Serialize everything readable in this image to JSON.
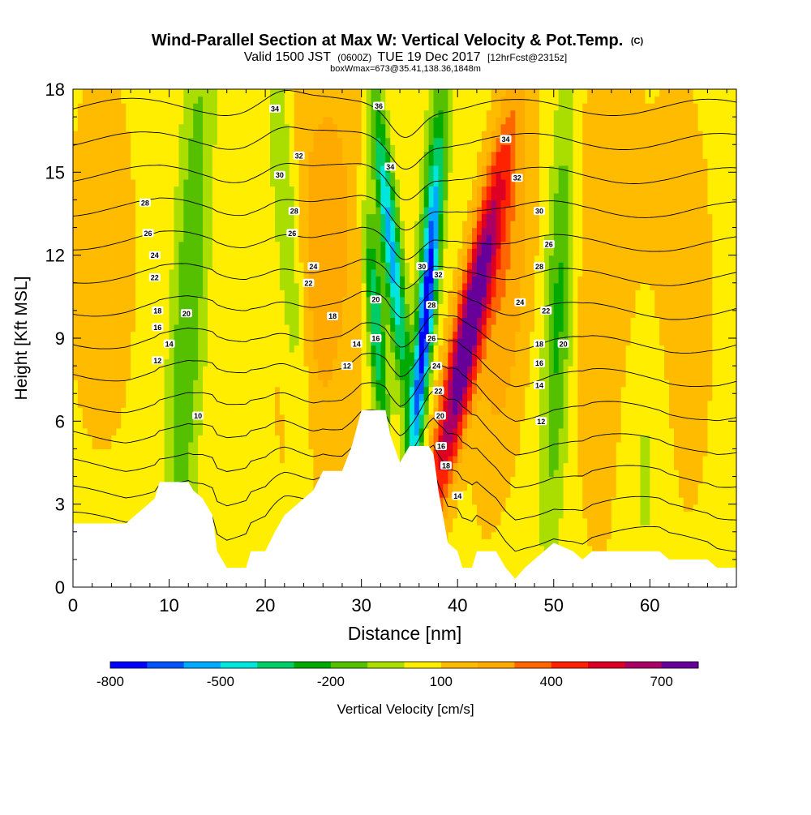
{
  "title": "Wind-Parallel Section at Max W: Vertical Velocity & Pot.Temp.",
  "title_mark": "(C)",
  "subtitle_parts": [
    "Valid 1500 JST",
    "(0600Z)",
    "TUE 19 Dec 2017",
    "[12hrFcst@2315z]"
  ],
  "subtitle2": "boxWmax=673@35.41,138.36,1848m",
  "colorbar": {
    "label": "Vertical Velocity [cm/s]",
    "tick_labels": [
      "-800",
      "-500",
      "-200",
      "100",
      "400",
      "700"
    ],
    "tick_values": [
      -800,
      -500,
      -200,
      100,
      400,
      700
    ],
    "levels": [
      -800,
      -700,
      -600,
      -500,
      -400,
      -300,
      -200,
      -100,
      0,
      100,
      200,
      300,
      400,
      500,
      600,
      700,
      800
    ],
    "colors": [
      "#0000ff",
      "#0055ff",
      "#00aaff",
      "#00e5dd",
      "#00cc66",
      "#00aa00",
      "#55c000",
      "#aadd00",
      "#ffee00",
      "#ffbb00",
      "#ffaa00",
      "#ff6600",
      "#ff2200",
      "#dd0022",
      "#aa0066",
      "#660099"
    ]
  },
  "chart_data": {
    "type": "heatmap",
    "xlabel": "Distance [nm]",
    "ylabel": "Height [Kft MSL]",
    "xlim": [
      0,
      69
    ],
    "ylim": [
      0,
      18
    ],
    "x_ticks": [
      0,
      10,
      20,
      30,
      40,
      50,
      60
    ],
    "y_ticks": [
      0,
      3,
      6,
      9,
      12,
      15,
      18
    ],
    "terrain": [
      {
        "x": 0,
        "h": 2.3
      },
      {
        "x": 5.5,
        "h": 2.3
      },
      {
        "x": 6.5,
        "h": 2.6
      },
      {
        "x": 7.5,
        "h": 2.9
      },
      {
        "x": 8.5,
        "h": 3.2
      },
      {
        "x": 9,
        "h": 3.8
      },
      {
        "x": 12,
        "h": 3.8
      },
      {
        "x": 12.5,
        "h": 3.5
      },
      {
        "x": 13.5,
        "h": 3.2
      },
      {
        "x": 14.5,
        "h": 2.6
      },
      {
        "x": 15,
        "h": 1.3
      },
      {
        "x": 16,
        "h": 0.7
      },
      {
        "x": 18,
        "h": 0.7
      },
      {
        "x": 18.5,
        "h": 1.3
      },
      {
        "x": 20,
        "h": 1.3
      },
      {
        "x": 21,
        "h": 2.0
      },
      {
        "x": 22,
        "h": 2.6
      },
      {
        "x": 23,
        "h": 2.9
      },
      {
        "x": 24,
        "h": 3.2
      },
      {
        "x": 25,
        "h": 3.5
      },
      {
        "x": 26,
        "h": 4.2
      },
      {
        "x": 28,
        "h": 4.2
      },
      {
        "x": 29,
        "h": 5.1
      },
      {
        "x": 30,
        "h": 6.4
      },
      {
        "x": 32.5,
        "h": 6.4
      },
      {
        "x": 33,
        "h": 5.5
      },
      {
        "x": 34,
        "h": 4.5
      },
      {
        "x": 35,
        "h": 5.1
      },
      {
        "x": 37,
        "h": 5.1
      },
      {
        "x": 37.5,
        "h": 4.8
      },
      {
        "x": 38,
        "h": 3.5
      },
      {
        "x": 39,
        "h": 1.6
      },
      {
        "x": 40,
        "h": 1.3
      },
      {
        "x": 40.5,
        "h": 0.7
      },
      {
        "x": 41.5,
        "h": 0.7
      },
      {
        "x": 42,
        "h": 1.3
      },
      {
        "x": 44,
        "h": 1.3
      },
      {
        "x": 45,
        "h": 0.7
      },
      {
        "x": 46,
        "h": 0.3
      },
      {
        "x": 47,
        "h": 0.7
      },
      {
        "x": 48,
        "h": 1.0
      },
      {
        "x": 49,
        "h": 1.3
      },
      {
        "x": 50,
        "h": 1.6
      },
      {
        "x": 52,
        "h": 1.3
      },
      {
        "x": 53,
        "h": 1.0
      },
      {
        "x": 54,
        "h": 1.3
      },
      {
        "x": 61,
        "h": 1.3
      },
      {
        "x": 62,
        "h": 1.0
      },
      {
        "x": 66,
        "h": 1.0
      },
      {
        "x": 67,
        "h": 0.7
      },
      {
        "x": 69,
        "h": 0.7
      }
    ],
    "w_features": [
      {
        "x": 41,
        "y": 9.0,
        "amp": 780,
        "sx": 1.1,
        "sy": 4.5,
        "tilt": 0.55
      },
      {
        "x": 36.5,
        "y": 9.0,
        "amp": -780,
        "sx": 0.6,
        "sy": 3.5,
        "tilt": 0.25
      },
      {
        "x": 33.0,
        "y": 12.5,
        "amp": -620,
        "sx": 0.7,
        "sy": 4.0,
        "tilt": -0.3
      },
      {
        "x": 31.5,
        "y": 9.5,
        "amp": -500,
        "sx": 0.6,
        "sy": 3.0,
        "tilt": -0.2
      },
      {
        "x": 37.5,
        "y": 14.5,
        "amp": -350,
        "sx": 0.8,
        "sy": 3.0,
        "tilt": 0.2
      },
      {
        "x": 45.0,
        "y": 11.0,
        "amp": 220,
        "sx": 1.8,
        "sy": 5.0,
        "tilt": 0.2
      },
      {
        "x": 26.0,
        "y": 12.0,
        "amp": 200,
        "sx": 3.0,
        "sy": 6.0,
        "tilt": 0.1
      },
      {
        "x": 12.0,
        "y": 10.0,
        "amp": -260,
        "sx": 1.2,
        "sy": 8.0,
        "tilt": 0.15
      },
      {
        "x": 22.5,
        "y": 12.0,
        "amp": -230,
        "sx": 1.0,
        "sy": 5.0,
        "tilt": -0.2
      },
      {
        "x": 50.5,
        "y": 10.0,
        "amp": -300,
        "sx": 1.0,
        "sy": 5.5,
        "tilt": 0.1
      },
      {
        "x": 55.5,
        "y": 11.0,
        "amp": 130,
        "sx": 2.5,
        "sy": 7.0,
        "tilt": 0.0
      },
      {
        "x": 63.0,
        "y": 10.0,
        "amp": 110,
        "sx": 2.5,
        "sy": 6.0,
        "tilt": 0.0
      },
      {
        "x": 3.0,
        "y": 12.0,
        "amp": 80,
        "sx": 3.0,
        "sy": 6.0,
        "tilt": 0.0
      },
      {
        "x": 59.5,
        "y": 5.0,
        "amp": -120,
        "sx": 2.0,
        "sy": 4.0,
        "tilt": 0.0
      }
    ],
    "theta_contour_levels": [
      10,
      12,
      14,
      16,
      18,
      20,
      22,
      24,
      26,
      28,
      30,
      32,
      34,
      36
    ],
    "theta_labels": [
      {
        "text": "34",
        "x": 21.0,
        "y": 17.3
      },
      {
        "text": "32",
        "x": 23.5,
        "y": 15.6
      },
      {
        "text": "30",
        "x": 21.5,
        "y": 14.9
      },
      {
        "text": "28",
        "x": 7.5,
        "y": 13.9
      },
      {
        "text": "28",
        "x": 23.0,
        "y": 13.6
      },
      {
        "text": "26",
        "x": 7.8,
        "y": 12.8
      },
      {
        "text": "26",
        "x": 22.8,
        "y": 12.8
      },
      {
        "text": "24",
        "x": 8.5,
        "y": 12.0
      },
      {
        "text": "24",
        "x": 25.0,
        "y": 11.6
      },
      {
        "text": "22",
        "x": 8.5,
        "y": 11.2
      },
      {
        "text": "22",
        "x": 24.5,
        "y": 11.0
      },
      {
        "text": "18",
        "x": 8.8,
        "y": 10.0
      },
      {
        "text": "20",
        "x": 11.8,
        "y": 9.9
      },
      {
        "text": "18",
        "x": 27.0,
        "y": 9.8
      },
      {
        "text": "16",
        "x": 8.8,
        "y": 9.4
      },
      {
        "text": "14",
        "x": 10.0,
        "y": 8.8
      },
      {
        "text": "14",
        "x": 29.5,
        "y": 8.8
      },
      {
        "text": "12",
        "x": 8.8,
        "y": 8.2
      },
      {
        "text": "12",
        "x": 28.5,
        "y": 8.0
      },
      {
        "text": "10",
        "x": 13.0,
        "y": 6.2
      },
      {
        "text": "36",
        "x": 31.8,
        "y": 17.4
      },
      {
        "text": "34",
        "x": 33.0,
        "y": 15.2
      },
      {
        "text": "30",
        "x": 36.3,
        "y": 11.6
      },
      {
        "text": "32",
        "x": 38.0,
        "y": 11.3
      },
      {
        "text": "20",
        "x": 31.5,
        "y": 10.4
      },
      {
        "text": "16",
        "x": 31.5,
        "y": 9.0
      },
      {
        "text": "28",
        "x": 37.3,
        "y": 10.2
      },
      {
        "text": "26",
        "x": 37.3,
        "y": 9.0
      },
      {
        "text": "24",
        "x": 37.8,
        "y": 8.0
      },
      {
        "text": "22",
        "x": 38.0,
        "y": 7.1
      },
      {
        "text": "20",
        "x": 38.2,
        "y": 6.2
      },
      {
        "text": "16",
        "x": 38.3,
        "y": 5.1
      },
      {
        "text": "18",
        "x": 38.8,
        "y": 4.4
      },
      {
        "text": "14",
        "x": 40.0,
        "y": 3.3
      },
      {
        "text": "34",
        "x": 45.0,
        "y": 16.2
      },
      {
        "text": "32",
        "x": 46.2,
        "y": 14.8
      },
      {
        "text": "30",
        "x": 48.5,
        "y": 13.6
      },
      {
        "text": "26",
        "x": 49.5,
        "y": 12.4
      },
      {
        "text": "28",
        "x": 48.5,
        "y": 11.6
      },
      {
        "text": "24",
        "x": 46.5,
        "y": 10.3
      },
      {
        "text": "22",
        "x": 49.2,
        "y": 10.0
      },
      {
        "text": "18",
        "x": 48.5,
        "y": 8.8
      },
      {
        "text": "20",
        "x": 51.0,
        "y": 8.8
      },
      {
        "text": "16",
        "x": 48.5,
        "y": 8.1
      },
      {
        "text": "14",
        "x": 48.5,
        "y": 7.3
      },
      {
        "text": "12",
        "x": 48.7,
        "y": 6.0
      }
    ]
  }
}
